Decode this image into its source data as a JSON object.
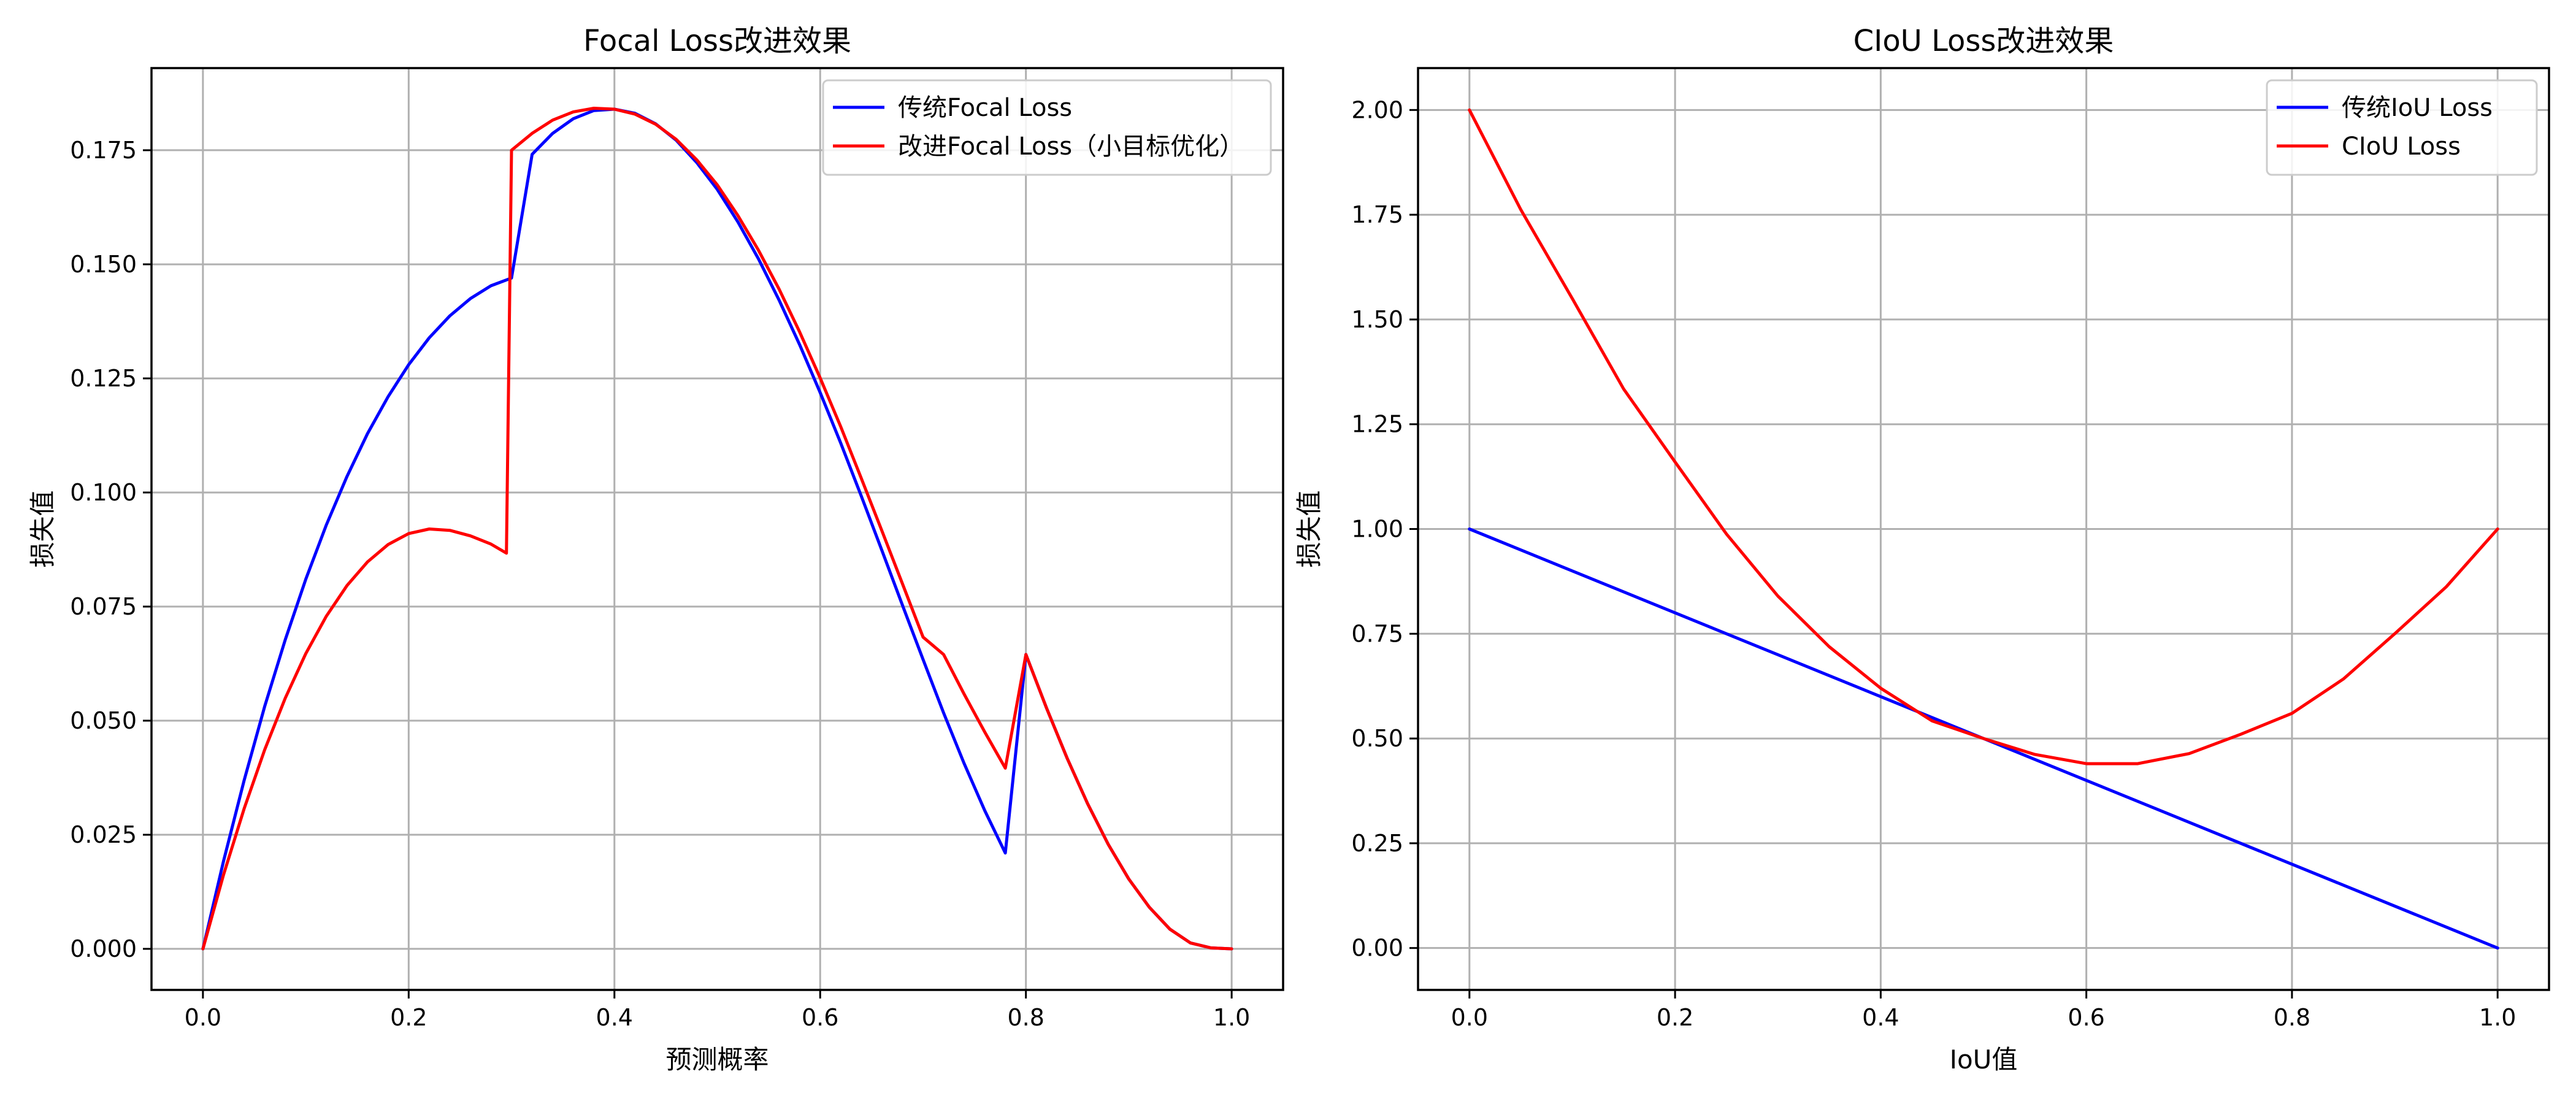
{
  "chart_data": [
    {
      "type": "line",
      "title": "Focal Loss改进效果",
      "xlabel": "预测概率",
      "ylabel": "损失值",
      "xlim": [
        -0.05,
        1.05
      ],
      "ylim": [
        -0.009,
        0.193
      ],
      "xticks": [
        0.0,
        0.2,
        0.4,
        0.6,
        0.8,
        1.0
      ],
      "xtick_labels": [
        "0.0",
        "0.2",
        "0.4",
        "0.6",
        "0.8",
        "1.0"
      ],
      "yticks": [
        0.0,
        0.025,
        0.05,
        0.075,
        0.1,
        0.125,
        0.15,
        0.175
      ],
      "ytick_labels": [
        "0.000",
        "0.025",
        "0.050",
        "0.075",
        "0.100",
        "0.125",
        "0.150",
        "0.175"
      ],
      "grid": true,
      "legend_position": "top-right",
      "series": [
        {
          "name": "传统Focal Loss",
          "color": "#0000ff",
          "x": [
            0,
            0.02,
            0.04,
            0.06,
            0.08,
            0.1,
            0.12,
            0.14,
            0.16,
            0.18,
            0.2,
            0.22,
            0.24,
            0.26,
            0.28,
            0.3,
            0.32,
            0.34,
            0.36,
            0.38,
            0.4,
            0.42,
            0.44,
            0.46,
            0.48,
            0.5,
            0.52,
            0.54,
            0.56,
            0.58,
            0.6,
            0.62,
            0.64,
            0.66,
            0.68,
            0.7,
            0.72,
            0.74,
            0.76,
            0.78,
            0.8,
            0.82,
            0.84,
            0.86,
            0.88,
            0.9,
            0.92,
            0.94,
            0.96,
            0.98,
            1.0
          ],
          "y": [
            0,
            0.0192,
            0.0369,
            0.0531,
            0.0677,
            0.081,
            0.0929,
            0.1035,
            0.1129,
            0.121,
            0.128,
            0.1339,
            0.1387,
            0.1425,
            0.1453,
            0.147,
            0.1741,
            0.1787,
            0.1819,
            0.1837,
            0.184,
            0.1831,
            0.1808,
            0.1772,
            0.1723,
            0.1664,
            0.1593,
            0.1512,
            0.1422,
            0.1324,
            0.1219,
            0.1108,
            0.0992,
            0.0873,
            0.0753,
            0.0634,
            0.0517,
            0.0406,
            0.0303,
            0.021,
            0.0645,
            0.0528,
            0.0418,
            0.0318,
            0.0229,
            0.0153,
            0.0091,
            0.0043,
            0.0013,
            0.0002,
            0
          ]
        },
        {
          "name": "改进Focal Loss（小目标优化）",
          "color": "#ff0000",
          "x": [
            0,
            0.02,
            0.04,
            0.06,
            0.08,
            0.1,
            0.12,
            0.14,
            0.16,
            0.18,
            0.2,
            0.22,
            0.24,
            0.26,
            0.28,
            0.295,
            0.3,
            0.32,
            0.34,
            0.36,
            0.38,
            0.4,
            0.42,
            0.44,
            0.46,
            0.48,
            0.5,
            0.52,
            0.54,
            0.56,
            0.58,
            0.6,
            0.62,
            0.64,
            0.66,
            0.68,
            0.7,
            0.72,
            0.74,
            0.76,
            0.78,
            0.8,
            0.82,
            0.84,
            0.86,
            0.88,
            0.9,
            0.92,
            0.94,
            0.96,
            0.98,
            1.0
          ],
          "y": [
            0,
            0.0162,
            0.0307,
            0.0436,
            0.0549,
            0.0647,
            0.0729,
            0.0796,
            0.0848,
            0.0886,
            0.091,
            0.092,
            0.0917,
            0.0905,
            0.0887,
            0.0867,
            0.175,
            0.1787,
            0.1816,
            0.1834,
            0.1842,
            0.184,
            0.1829,
            0.1807,
            0.1774,
            0.1729,
            0.1674,
            0.1607,
            0.1531,
            0.1446,
            0.1352,
            0.1251,
            0.1144,
            0.1031,
            0.0916,
            0.08,
            0.0683,
            0.0645,
            0.0558,
            0.0475,
            0.0396,
            0.0645,
            0.0528,
            0.0418,
            0.0318,
            0.0229,
            0.0153,
            0.0091,
            0.0043,
            0.0013,
            0.0002,
            0
          ]
        }
      ]
    },
    {
      "type": "line",
      "title": "CIoU Loss改进效果",
      "xlabel": "IoU值",
      "ylabel": "损失值",
      "xlim": [
        -0.05,
        1.05
      ],
      "ylim": [
        -0.1,
        2.1
      ],
      "xticks": [
        0.0,
        0.2,
        0.4,
        0.6,
        0.8,
        1.0
      ],
      "xtick_labels": [
        "0.0",
        "0.2",
        "0.4",
        "0.6",
        "0.8",
        "1.0"
      ],
      "yticks": [
        0.0,
        0.25,
        0.5,
        0.75,
        1.0,
        1.25,
        1.5,
        1.75,
        2.0
      ],
      "ytick_labels": [
        "0.00",
        "0.25",
        "0.50",
        "0.75",
        "1.00",
        "1.25",
        "1.50",
        "1.75",
        "2.00"
      ],
      "grid": true,
      "legend_position": "top-right",
      "series": [
        {
          "name": "传统IoU Loss",
          "color": "#0000ff",
          "x": [
            0,
            1
          ],
          "y": [
            1,
            0
          ]
        },
        {
          "name": "CIoU Loss",
          "color": "#ff0000",
          "x": [
            0,
            0.05,
            0.1,
            0.15,
            0.2,
            0.25,
            0.3,
            0.35,
            0.4,
            0.45,
            0.5,
            0.55,
            0.6,
            0.65,
            0.7,
            0.75,
            0.8,
            0.85,
            0.9,
            0.95,
            1.0
          ],
          "y": [
            2.0,
            1.762,
            1.55,
            1.334,
            1.16,
            0.988,
            0.84,
            0.719,
            0.62,
            0.542,
            0.5,
            0.462,
            0.44,
            0.44,
            0.464,
            0.51,
            0.56,
            0.642,
            0.75,
            0.862,
            1.0
          ]
        }
      ]
    }
  ]
}
